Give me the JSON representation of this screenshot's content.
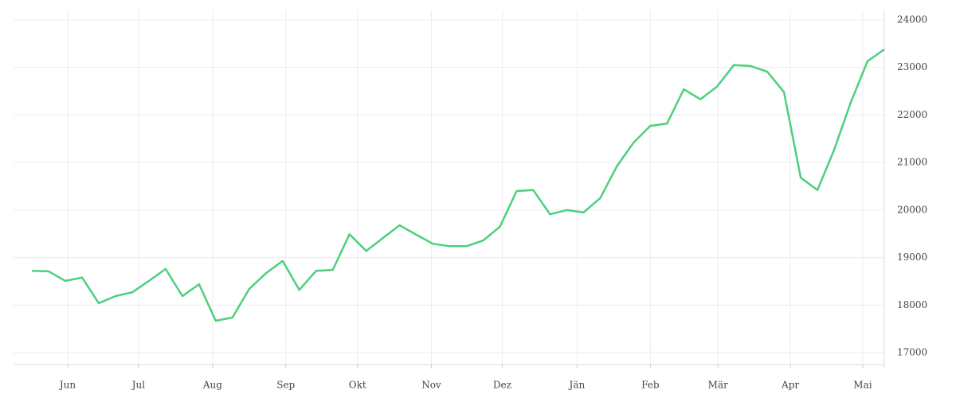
{
  "chart_data": {
    "type": "line",
    "x": [
      0,
      1,
      2,
      3,
      4,
      5,
      6,
      7,
      8,
      9,
      10,
      11,
      12,
      13,
      14,
      15,
      16,
      17,
      18,
      19,
      20,
      21,
      22,
      23,
      24,
      25,
      26,
      27,
      28,
      29,
      30,
      31,
      32,
      33,
      34,
      35,
      36,
      37,
      38,
      39,
      40,
      41,
      42,
      43,
      44,
      45,
      46,
      47,
      48,
      49,
      50,
      51
    ],
    "series": [
      {
        "color": "#4cd07d",
        "values": [
          18720,
          18710,
          18510,
          18580,
          18040,
          18190,
          18270,
          18510,
          18760,
          18190,
          18440,
          17670,
          17740,
          18340,
          18670,
          18930,
          18320,
          18720,
          18740,
          19490,
          19140,
          19410,
          19680,
          19480,
          19290,
          19240,
          19240,
          19360,
          19650,
          20400,
          20420,
          19910,
          20000,
          19950,
          20250,
          20920,
          21420,
          21770,
          21820,
          22540,
          22330,
          22600,
          23050,
          23030,
          22910,
          22480,
          20680,
          20420,
          21270,
          22270,
          23130,
          23380
        ]
      }
    ],
    "xlim": [
      -1.1,
      51
    ],
    "xticks": [
      {
        "value": 2.14,
        "label": "Jun"
      },
      {
        "value": 6.38,
        "label": "Jul"
      },
      {
        "value": 10.81,
        "label": "Aug"
      },
      {
        "value": 15.19,
        "label": "Sep"
      },
      {
        "value": 19.48,
        "label": "Okt"
      },
      {
        "value": 23.9,
        "label": "Nov"
      },
      {
        "value": 28.14,
        "label": "Dez"
      },
      {
        "value": 32.62,
        "label": "Jän"
      },
      {
        "value": 37.0,
        "label": "Feb"
      },
      {
        "value": 41.05,
        "label": "Mär"
      },
      {
        "value": 45.38,
        "label": "Apr"
      },
      {
        "value": 49.71,
        "label": "Mai"
      }
    ],
    "ylim": [
      16750,
      24200
    ],
    "yticks": [
      17000,
      18000,
      19000,
      20000,
      21000,
      22000,
      23000,
      24000
    ],
    "grid": true
  }
}
